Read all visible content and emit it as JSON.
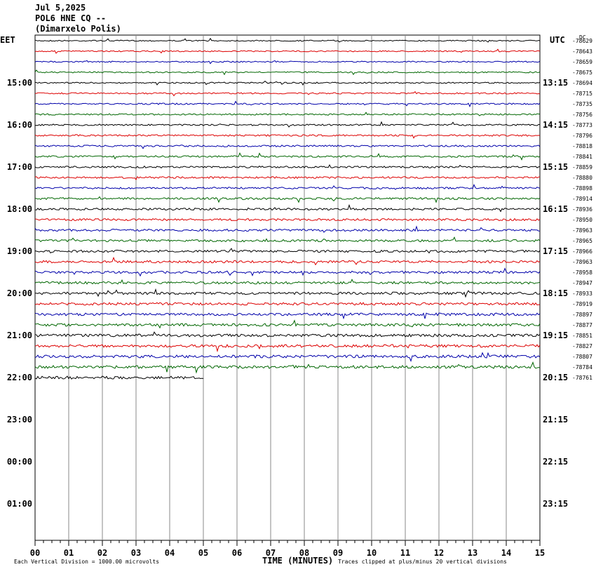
{
  "header": {
    "date": "Jul 5,2025",
    "station": "POL6 HNE CQ --",
    "location": "(Dimarxelo Polis)"
  },
  "left_zone": "EET",
  "right_zone": "UTC",
  "dc_label": "DC",
  "left_times": [
    "15:00",
    "16:00",
    "17:00",
    "18:00",
    "19:00",
    "20:00",
    "21:00",
    "22:00",
    "23:00",
    "00:00",
    "01:00"
  ],
  "right_times": [
    "13:15",
    "14:15",
    "15:15",
    "16:15",
    "17:15",
    "18:15",
    "19:15",
    "20:15",
    "21:15",
    "22:15",
    "23:15"
  ],
  "trace_offsets": [
    "-78629",
    "-78643",
    "-78659",
    "-78675",
    "-78694",
    "-78715",
    "-78735",
    "-78756",
    "-78773",
    "-78796",
    "-78818",
    "-78841",
    "-78859",
    "-78880",
    "-78898",
    "-78914",
    "-78936",
    "-78950",
    "-78963",
    "-78965",
    "-78966",
    "-78963",
    "-78958",
    "-78947",
    "-78933",
    "-78919",
    "-78897",
    "-78877",
    "-78851",
    "-78827",
    "-78807",
    "-78784",
    "-78761"
  ],
  "x_ticks": [
    "00",
    "01",
    "02",
    "03",
    "04",
    "05",
    "06",
    "07",
    "08",
    "09",
    "10",
    "11",
    "12",
    "13",
    "14",
    "15"
  ],
  "x_axis_label": "TIME (MINUTES)",
  "footer": {
    "scale": "Each Vertical Division = 1000.00 microvolts",
    "clip": "Traces clipped at plus/minus 20 vertical divisions"
  }
}
